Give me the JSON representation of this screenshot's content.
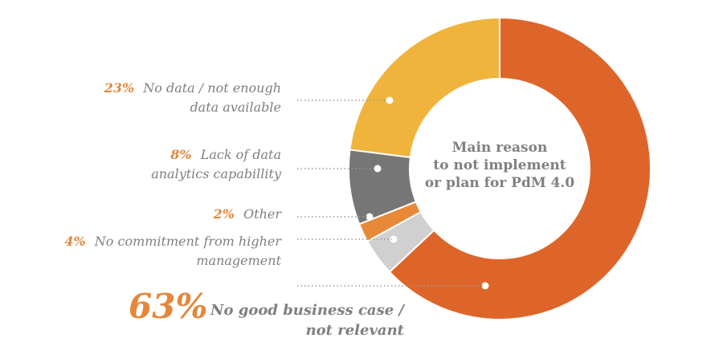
{
  "chart_data": {
    "type": "pie",
    "title": "Main reason to not implement or plan for PdM 4.0",
    "center_lines": [
      "Main reason",
      "to not implement",
      "or plan for PdM 4.0"
    ],
    "slices": [
      {
        "name": "No good business case / not relevant",
        "value": 63,
        "pct_label": "63%",
        "label_lines": [
          "No good business case /",
          "not relevant"
        ],
        "color": "#de652a"
      },
      {
        "name": "No commitment from higher management",
        "value": 4,
        "pct_label": "4%",
        "label_lines": [
          "No commitment from higher",
          "management"
        ],
        "color": "#d0d0d0"
      },
      {
        "name": "Other",
        "value": 2,
        "pct_label": "2%",
        "label_lines": [
          "Other"
        ],
        "color": "#e8893a"
      },
      {
        "name": "Lack of data analytics capabillity",
        "value": 8,
        "pct_label": "8%",
        "label_lines": [
          "Lack of data",
          "analytics capabillity"
        ],
        "color": "#767676"
      },
      {
        "name": "No data / not enough data available",
        "value": 23,
        "pct_label": "23%",
        "label_lines": [
          "No data / not enough",
          "data available"
        ],
        "color": "#f0b43c"
      }
    ]
  }
}
